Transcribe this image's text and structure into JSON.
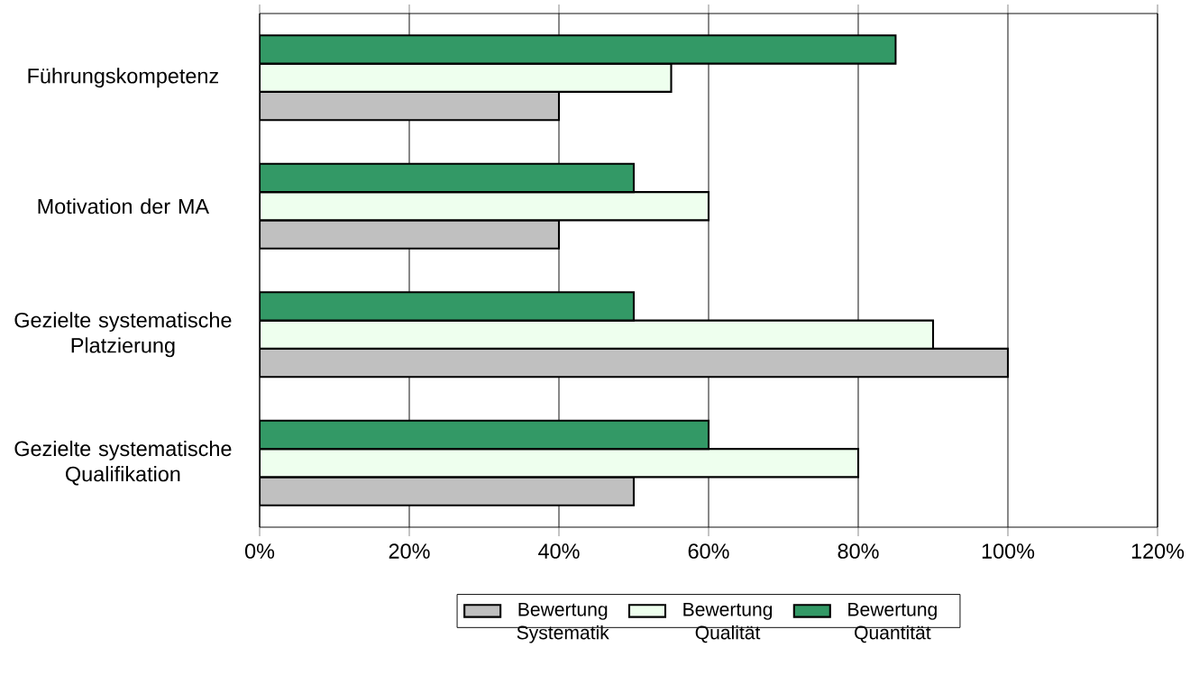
{
  "chart_data": {
    "type": "bar",
    "orientation": "horizontal",
    "categories": [
      "Führungskompetenz",
      "Motivation der MA",
      "Gezielte systematische Platzierung",
      "Gezielte systematische Qualifikation"
    ],
    "series": [
      {
        "name": "Bewertung Systematik",
        "color": "#c0c0c0",
        "values": [
          40,
          40,
          100,
          50
        ]
      },
      {
        "name": "Bewertung Qualität",
        "color": "#eeffee",
        "values": [
          55,
          60,
          90,
          80
        ]
      },
      {
        "name": "Bewertung Quantität",
        "color": "#339966",
        "values": [
          85,
          50,
          50,
          60
        ]
      }
    ],
    "xlim": [
      0,
      120
    ],
    "xticks": [
      {
        "value": 0,
        "label": "0%"
      },
      {
        "value": 20,
        "label": "20%"
      },
      {
        "value": 40,
        "label": "40%"
      },
      {
        "value": 60,
        "label": "60%"
      },
      {
        "value": 80,
        "label": "80%"
      },
      {
        "value": 100,
        "label": "100%"
      },
      {
        "value": 120,
        "label": "120%"
      }
    ],
    "grid": "x",
    "legend": "bottom"
  }
}
